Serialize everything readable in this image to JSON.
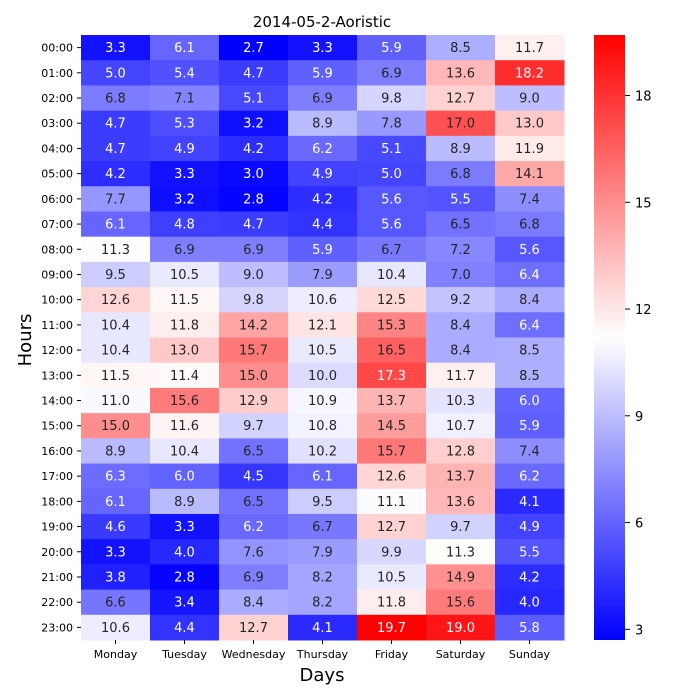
{
  "chart_data": {
    "type": "heatmap",
    "title": "2014-05-2-Aoristic",
    "xlabel": "Days",
    "ylabel": "Hours",
    "x_categories": [
      "Monday",
      "Tuesday",
      "Wednesday",
      "Thursday",
      "Friday",
      "Saturday",
      "Sunday"
    ],
    "y_categories": [
      "00:00",
      "01:00",
      "02:00",
      "03:00",
      "04:00",
      "05:00",
      "06:00",
      "07:00",
      "08:00",
      "09:00",
      "10:00",
      "11:00",
      "12:00",
      "13:00",
      "14:00",
      "15:00",
      "16:00",
      "17:00",
      "18:00",
      "19:00",
      "20:00",
      "21:00",
      "22:00",
      "23:00"
    ],
    "values": [
      [
        3.3,
        6.1,
        2.7,
        3.3,
        5.9,
        8.5,
        11.7
      ],
      [
        5.0,
        5.4,
        4.7,
        5.9,
        6.9,
        13.6,
        18.2
      ],
      [
        6.8,
        7.1,
        5.1,
        6.9,
        9.8,
        12.7,
        9.0
      ],
      [
        4.7,
        5.3,
        3.2,
        8.9,
        7.8,
        17.0,
        13.0
      ],
      [
        4.7,
        4.9,
        4.2,
        6.2,
        5.1,
        8.9,
        11.9
      ],
      [
        4.2,
        3.3,
        3.0,
        4.9,
        5.0,
        6.8,
        14.1
      ],
      [
        7.7,
        3.2,
        2.8,
        4.2,
        5.6,
        5.5,
        7.4
      ],
      [
        6.1,
        4.8,
        4.7,
        4.4,
        5.6,
        6.5,
        6.8
      ],
      [
        11.3,
        6.9,
        6.9,
        5.9,
        6.7,
        7.2,
        5.6
      ],
      [
        9.5,
        10.5,
        9.0,
        7.9,
        10.4,
        7.0,
        6.4
      ],
      [
        12.6,
        11.5,
        9.8,
        10.6,
        12.5,
        9.2,
        8.4
      ],
      [
        10.4,
        11.8,
        14.2,
        12.1,
        15.3,
        8.4,
        6.4
      ],
      [
        10.4,
        13.0,
        15.7,
        10.5,
        16.5,
        8.4,
        8.5
      ],
      [
        11.5,
        11.4,
        15.0,
        10.0,
        17.3,
        11.7,
        8.5
      ],
      [
        11.0,
        15.6,
        12.9,
        10.9,
        13.7,
        10.3,
        6.0
      ],
      [
        15.0,
        11.6,
        9.7,
        10.8,
        14.5,
        10.7,
        5.9
      ],
      [
        8.9,
        10.4,
        6.5,
        10.2,
        15.7,
        12.8,
        7.4
      ],
      [
        6.3,
        6.0,
        4.5,
        6.1,
        12.6,
        13.7,
        6.2
      ],
      [
        6.1,
        8.9,
        6.5,
        9.5,
        11.1,
        13.6,
        4.1
      ],
      [
        4.6,
        3.3,
        6.2,
        6.7,
        12.7,
        9.7,
        4.9
      ],
      [
        3.3,
        4.0,
        7.6,
        7.9,
        9.9,
        11.3,
        5.5
      ],
      [
        3.8,
        2.8,
        6.9,
        8.2,
        10.5,
        14.9,
        4.2
      ],
      [
        6.6,
        3.4,
        8.4,
        8.2,
        11.8,
        15.6,
        4.0
      ],
      [
        10.6,
        4.4,
        12.7,
        4.1,
        19.7,
        19.0,
        5.8
      ]
    ],
    "value_format": "0.1f",
    "colormap": "bwr",
    "colorscale_range": [
      2.7,
      19.7
    ],
    "colorbar_ticks": [
      3,
      6,
      9,
      12,
      15,
      18
    ],
    "colors": {
      "low": "#0000ff",
      "mid": "#ffffff",
      "high": "#ff0000"
    }
  }
}
